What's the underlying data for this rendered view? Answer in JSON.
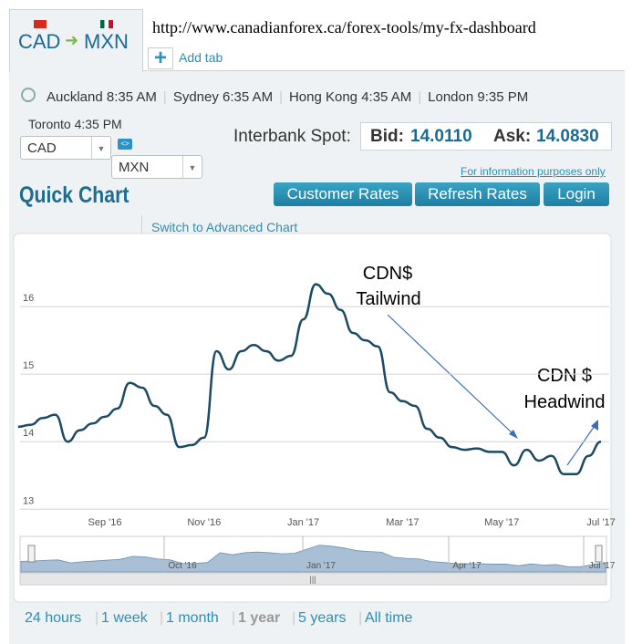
{
  "tab": {
    "from": "CAD",
    "to": "MXN"
  },
  "url": "http://www.canadianforex.ca/forex-tools/my-fx-dashboard",
  "add_tab": "Add tab",
  "clocks": [
    "Auckland 8:35 AM",
    "Sydney 6:35 AM",
    "Hong Kong 4:35 AM",
    "London 9:35 PM"
  ],
  "local_time": "Toronto 4:35 PM",
  "selects": {
    "from": "CAD",
    "to": "MXN"
  },
  "spot": {
    "label": "Interbank Spot:",
    "bid_label": "Bid:",
    "bid": "14.0110",
    "ask_label": "Ask:",
    "ask": "14.0830"
  },
  "disclaimer": "For information purposes only",
  "heading": "Quick Chart",
  "buttons": [
    "Customer Rates",
    "Refresh Rates",
    "Login"
  ],
  "advanced_link": "Switch to Advanced Chart",
  "chart_data": {
    "type": "line",
    "categories": [
      null,
      null,
      null,
      null,
      null,
      null,
      null,
      "Sep '16",
      null,
      null,
      null,
      null,
      null,
      null,
      null,
      "Nov '16",
      null,
      null,
      null,
      null,
      null,
      null,
      null,
      "Jan '17",
      null,
      null,
      null,
      null,
      null,
      null,
      null,
      "Mar '17",
      null,
      null,
      null,
      null,
      null,
      null,
      null,
      "May '17",
      null,
      null,
      null,
      null,
      null,
      null,
      null,
      "Jul '17"
    ],
    "values": [
      14.22,
      14.25,
      14.35,
      14.4,
      14.0,
      14.17,
      14.27,
      14.37,
      14.49,
      14.87,
      14.8,
      14.53,
      14.4,
      13.92,
      13.95,
      14.06,
      15.34,
      15.07,
      15.34,
      15.43,
      15.34,
      15.2,
      15.27,
      15.81,
      16.33,
      16.19,
      15.95,
      15.61,
      15.5,
      15.41,
      14.73,
      14.6,
      14.53,
      14.19,
      14.06,
      13.92,
      13.88,
      13.9,
      13.85,
      13.85,
      13.65,
      13.88,
      13.72,
      13.79,
      13.52,
      13.52,
      13.79,
      14.0
    ],
    "color": "#1d4a63",
    "ylim": [
      12.95,
      17
    ],
    "yticks": [
      13,
      14,
      15,
      16
    ],
    "grid": true,
    "annotations": [
      "CDN$",
      "Tailwind",
      "CDN $",
      "Headwind"
    ],
    "navigator_labels": [
      "Oct '16",
      "Jan '17",
      "Apr '17",
      "Jul '17"
    ]
  },
  "ranges": [
    "24 hours",
    "1 week",
    "1 month",
    "1 year",
    "5 years",
    "All time"
  ],
  "selected_range": 3
}
